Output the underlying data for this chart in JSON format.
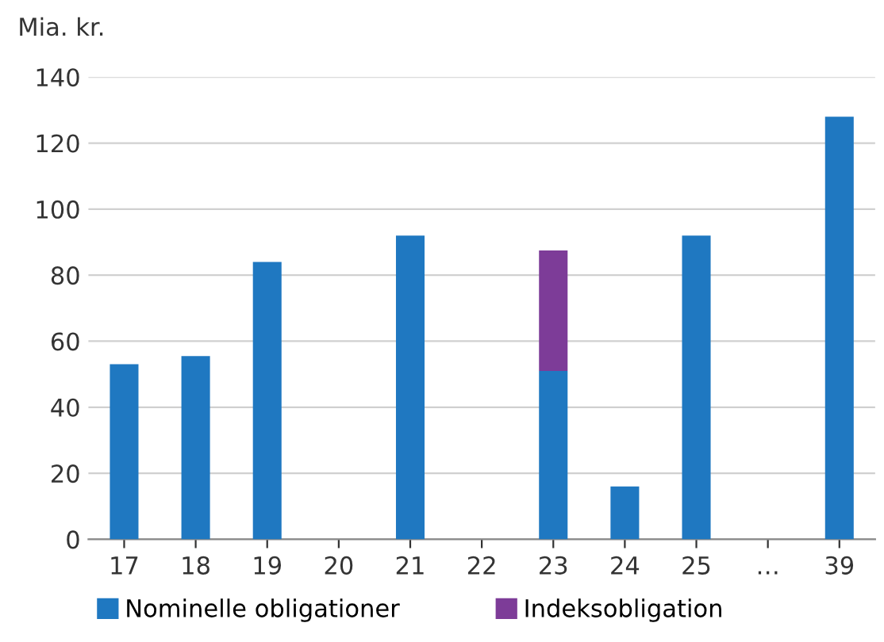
{
  "chart_data": {
    "type": "bar",
    "ylabel": "Mia. kr.",
    "stacked": true,
    "categories": [
      "17",
      "18",
      "19",
      "20",
      "21",
      "22",
      "23",
      "24",
      "25",
      "…",
      "39"
    ],
    "series": [
      {
        "name": "Nominelle obligationer",
        "color": "#1f78c1",
        "values": [
          53,
          55.5,
          84,
          null,
          92,
          null,
          51,
          16,
          92,
          null,
          128
        ]
      },
      {
        "name": "Indeksobligation",
        "color": "#7d3c98",
        "values": [
          null,
          null,
          null,
          null,
          null,
          null,
          36.5,
          null,
          null,
          null,
          null
        ]
      }
    ],
    "ylim": [
      0,
      140
    ],
    "yticks": [
      0,
      20,
      40,
      60,
      80,
      100,
      120,
      140
    ],
    "grid": "y",
    "legend": "bottom"
  }
}
